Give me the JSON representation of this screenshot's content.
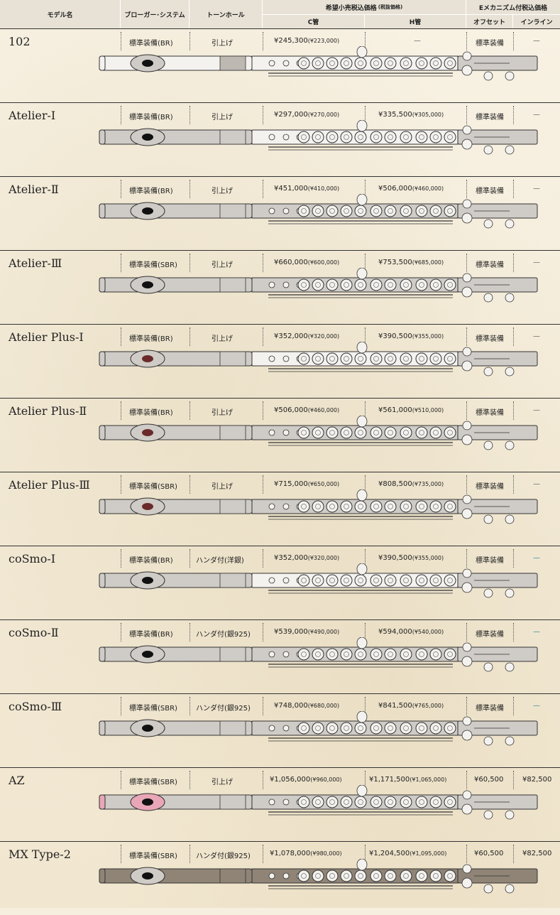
{
  "header": {
    "model": "モデル名",
    "embouchure": "ブローガー･システム",
    "tonehole": "トーンホール",
    "price_group": "希望小売税込価格",
    "price_group_note": "(税抜価格)",
    "c_foot": "C管",
    "h_foot": "H管",
    "e_group": "Eメカニズム付税込価格",
    "offset": "オフセット",
    "inline": "インライン"
  },
  "colors": {
    "silver": "#cfcbc6",
    "white_body": "#f4f2ef",
    "az_pink": "#e9a6b6",
    "mx_brown": "#8f8476",
    "outline": "#333333"
  },
  "rows": [
    {
      "name": "102",
      "system": "標準装備(BR)",
      "tonehole": "引上げ",
      "c_price": "¥245,300",
      "c_net": "(¥223,000)",
      "h_price": "",
      "h_net": "",
      "h_dash": "－",
      "offset": "標準装備",
      "inline": "",
      "inline_dash": "－",
      "head": "white",
      "body": "white",
      "lip": "black"
    },
    {
      "name": "Atelier-Ⅰ",
      "system": "標準装備(BR)",
      "tonehole": "引上げ",
      "c_price": "¥297,000",
      "c_net": "(¥270,000)",
      "h_price": "¥335,500",
      "h_net": "(¥305,000)",
      "h_dash": "",
      "offset": "標準装備",
      "inline": "",
      "inline_dash": "－",
      "head": "silver",
      "body": "white",
      "lip": "black"
    },
    {
      "name": "Atelier-Ⅱ",
      "system": "標準装備(BR)",
      "tonehole": "引上げ",
      "c_price": "¥451,000",
      "c_net": "(¥410,000)",
      "h_price": "¥506,000",
      "h_net": "(¥460,000)",
      "h_dash": "",
      "offset": "標準装備",
      "inline": "",
      "inline_dash": "－",
      "head": "silver",
      "body": "silver",
      "lip": "black"
    },
    {
      "name": "Atelier-Ⅲ",
      "system": "標準装備(SBR)",
      "tonehole": "引上げ",
      "c_price": "¥660,000",
      "c_net": "(¥600,000)",
      "h_price": "¥753,500",
      "h_net": "(¥685,000)",
      "h_dash": "",
      "offset": "標準装備",
      "inline": "",
      "inline_dash": "－",
      "head": "silver",
      "body": "silver",
      "lip": "black"
    },
    {
      "name": "Atelier Plus-Ⅰ",
      "system": "標準装備(BR)",
      "tonehole": "引上げ",
      "c_price": "¥352,000",
      "c_net": "(¥320,000)",
      "h_price": "¥390,500",
      "h_net": "(¥355,000)",
      "h_dash": "",
      "offset": "標準装備",
      "inline": "",
      "inline_dash": "－",
      "head": "silver",
      "body": "white",
      "lip": "red"
    },
    {
      "name": "Atelier Plus-Ⅱ",
      "system": "標準装備(BR)",
      "tonehole": "引上げ",
      "c_price": "¥506,000",
      "c_net": "(¥460,000)",
      "h_price": "¥561,000",
      "h_net": "(¥510,000)",
      "h_dash": "",
      "offset": "標準装備",
      "inline": "",
      "inline_dash": "－",
      "head": "silver",
      "body": "silver",
      "lip": "red"
    },
    {
      "name": "Atelier Plus-Ⅲ",
      "system": "標準装備(SBR)",
      "tonehole": "引上げ",
      "c_price": "¥715,000",
      "c_net": "(¥650,000)",
      "h_price": "¥808,500",
      "h_net": "(¥735,000)",
      "h_dash": "",
      "offset": "標準装備",
      "inline": "",
      "inline_dash": "－",
      "head": "silver",
      "body": "silver",
      "lip": "red"
    },
    {
      "name": "coSmo-Ⅰ",
      "system": "標準装備(BR)",
      "tonehole": "ハンダ付(洋銀)",
      "c_price": "¥352,000",
      "c_net": "(¥320,000)",
      "h_price": "¥390,500",
      "h_net": "(¥355,000)",
      "h_dash": "",
      "offset": "標準装備",
      "inline": "",
      "inline_dash": "－",
      "head": "silver",
      "body": "white",
      "lip": "black",
      "teal": true
    },
    {
      "name": "coSmo-Ⅱ",
      "system": "標準装備(BR)",
      "tonehole": "ハンダ付(銀925)",
      "c_price": "¥539,000",
      "c_net": "(¥490,000)",
      "h_price": "¥594,000",
      "h_net": "(¥540,000)",
      "h_dash": "",
      "offset": "標準装備",
      "inline": "",
      "inline_dash": "－",
      "head": "silver",
      "body": "silver",
      "lip": "black",
      "teal": true
    },
    {
      "name": "coSmo-Ⅲ",
      "system": "標準装備(SBR)",
      "tonehole": "ハンダ付(銀925)",
      "c_price": "¥748,000",
      "c_net": "(¥680,000)",
      "h_price": "¥841,500",
      "h_net": "(¥765,000)",
      "h_dash": "",
      "offset": "標準装備",
      "inline": "",
      "inline_dash": "－",
      "head": "silver",
      "body": "silver",
      "lip": "black",
      "teal": true
    },
    {
      "name": "AZ",
      "system": "標準装備(SBR)",
      "tonehole": "引上げ",
      "c_price": "¥1,056,000",
      "c_net": "(¥960,000)",
      "h_price": "¥1,171,500",
      "h_net": "(¥1,065,000)",
      "h_dash": "",
      "offset": "¥60,500",
      "inline": "¥82,500",
      "inline_dash": "",
      "head": "pinkish",
      "body": "silver",
      "lip": "pink"
    },
    {
      "name": "MX Type-2",
      "system": "標準装備(SBR)",
      "tonehole": "ハンダ付(銀925)",
      "c_price": "¥1,078,000",
      "c_net": "(¥980,000)",
      "h_price": "¥1,204,500",
      "h_net": "(¥1,095,000)",
      "h_dash": "",
      "offset": "¥60,500",
      "inline": "¥82,500",
      "inline_dash": "",
      "head": "brown",
      "body": "brown",
      "lip": "black"
    }
  ]
}
